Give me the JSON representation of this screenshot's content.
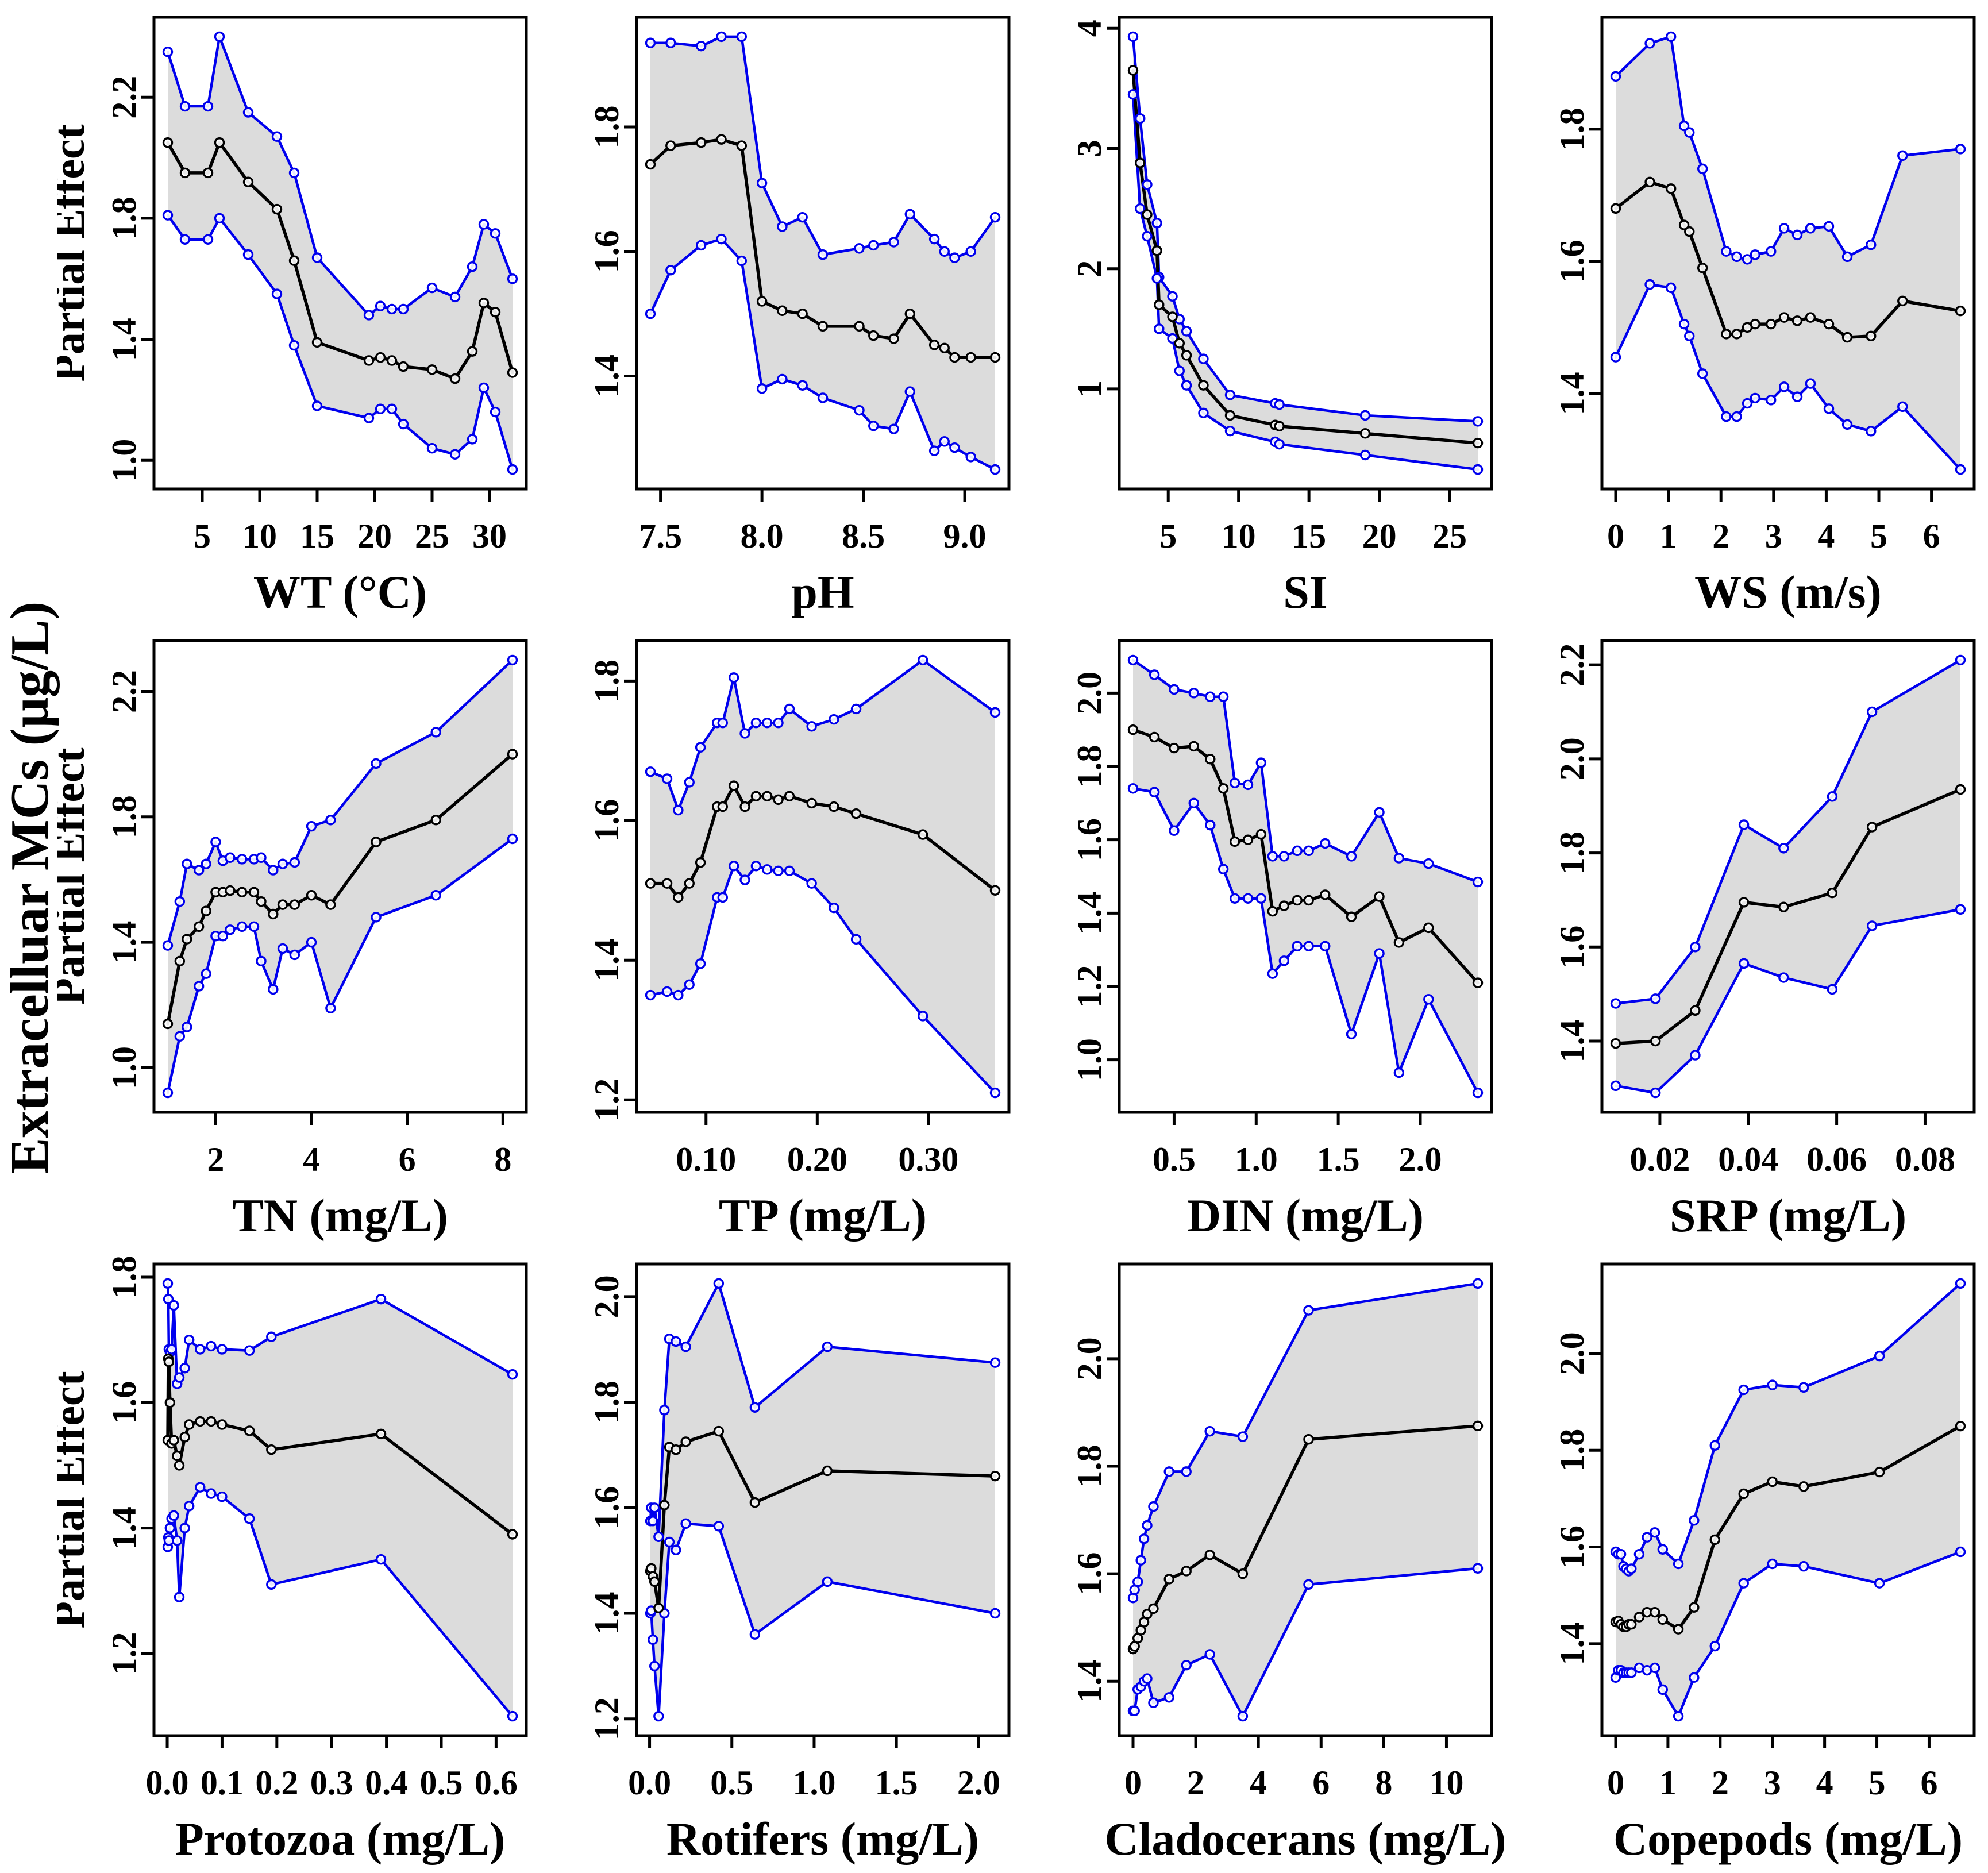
{
  "figure": {
    "outer_ylabel": "Extracelluar MCs (μg/L)",
    "row_ylabel": "Partial Effect",
    "colors": {
      "ci": "#0000EE",
      "line": "#000000",
      "band": "#DCDCDC",
      "background": "#FFFFFF"
    }
  },
  "chart_data": [
    {
      "type": "line-band",
      "xlabel": "WT (°C)",
      "ylabel": "Partial Effect",
      "xticks": [
        [
          5,
          "5"
        ],
        [
          10,
          "10"
        ],
        [
          15,
          "15"
        ],
        [
          20,
          "20"
        ],
        [
          25,
          "25"
        ],
        [
          30,
          "30"
        ]
      ],
      "yticks": [
        [
          1.0,
          "1.0"
        ],
        [
          1.4,
          "1.4"
        ],
        [
          1.8,
          "1.8"
        ],
        [
          2.2,
          "2.2"
        ]
      ],
      "x": [
        2,
        3.5,
        5.5,
        6.5,
        9,
        11.5,
        13,
        15,
        19.5,
        20.5,
        21.5,
        22.5,
        25,
        27,
        28.5,
        29.5,
        30.5,
        32
      ],
      "center": [
        2.05,
        1.95,
        1.95,
        2.05,
        1.92,
        1.83,
        1.66,
        1.39,
        1.33,
        1.34,
        1.33,
        1.31,
        1.3,
        1.27,
        1.36,
        1.52,
        1.49,
        1.29
      ],
      "upper": [
        2.35,
        2.17,
        2.17,
        2.4,
        2.15,
        2.07,
        1.95,
        1.67,
        1.48,
        1.51,
        1.5,
        1.5,
        1.57,
        1.54,
        1.64,
        1.78,
        1.75,
        1.6
      ],
      "lower": [
        1.81,
        1.73,
        1.73,
        1.8,
        1.68,
        1.55,
        1.38,
        1.18,
        1.14,
        1.17,
        1.17,
        1.12,
        1.04,
        1.02,
        1.07,
        1.24,
        1.16,
        0.97
      ]
    },
    {
      "type": "line-band",
      "xlabel": "pH",
      "ylabel": "",
      "xticks": [
        [
          7.5,
          "7.5"
        ],
        [
          8.0,
          "8.0"
        ],
        [
          8.5,
          "8.5"
        ],
        [
          9.0,
          "9.0"
        ]
      ],
      "yticks": [
        [
          1.4,
          "1.4"
        ],
        [
          1.6,
          "1.6"
        ],
        [
          1.8,
          "1.8"
        ]
      ],
      "x": [
        7.45,
        7.55,
        7.7,
        7.8,
        7.9,
        8.0,
        8.1,
        8.2,
        8.3,
        8.48,
        8.55,
        8.65,
        8.73,
        8.85,
        8.9,
        8.95,
        9.03,
        9.15
      ],
      "center": [
        1.74,
        1.77,
        1.775,
        1.78,
        1.77,
        1.52,
        1.505,
        1.5,
        1.48,
        1.48,
        1.465,
        1.46,
        1.5,
        1.45,
        1.445,
        1.43,
        1.43,
        1.43
      ],
      "upper": [
        1.935,
        1.935,
        1.93,
        1.945,
        1.945,
        1.71,
        1.64,
        1.655,
        1.595,
        1.605,
        1.61,
        1.615,
        1.66,
        1.62,
        1.6,
        1.59,
        1.6,
        1.655
      ],
      "lower": [
        1.5,
        1.57,
        1.61,
        1.62,
        1.585,
        1.38,
        1.395,
        1.385,
        1.365,
        1.345,
        1.32,
        1.315,
        1.375,
        1.28,
        1.295,
        1.285,
        1.27,
        1.25
      ]
    },
    {
      "type": "line-band",
      "xlabel": "SI",
      "ylabel": "",
      "xticks": [
        [
          5,
          "5"
        ],
        [
          10,
          "10"
        ],
        [
          15,
          "15"
        ],
        [
          20,
          "20"
        ],
        [
          25,
          "25"
        ]
      ],
      "yticks": [
        [
          1,
          "1"
        ],
        [
          2,
          "2"
        ],
        [
          3,
          "3"
        ],
        [
          4,
          "4"
        ]
      ],
      "x": [
        2.5,
        3.0,
        3.5,
        4.2,
        4.35,
        5.3,
        5.8,
        6.3,
        7.5,
        9.4,
        12.6,
        12.9,
        19,
        27
      ],
      "center": [
        3.65,
        2.88,
        2.45,
        2.15,
        1.7,
        1.6,
        1.38,
        1.28,
        1.03,
        0.78,
        0.7,
        0.69,
        0.63,
        0.55
      ],
      "upper": [
        3.93,
        3.25,
        2.7,
        2.38,
        1.93,
        1.77,
        1.58,
        1.48,
        1.25,
        0.95,
        0.88,
        0.87,
        0.78,
        0.73
      ],
      "lower": [
        3.45,
        2.5,
        2.27,
        1.92,
        1.5,
        1.42,
        1.15,
        1.03,
        0.8,
        0.65,
        0.56,
        0.54,
        0.45,
        0.33
      ]
    },
    {
      "type": "line-band",
      "xlabel": "WS (m/s)",
      "ylabel": "",
      "xticks": [
        [
          0,
          "0"
        ],
        [
          1,
          "1"
        ],
        [
          2,
          "2"
        ],
        [
          3,
          "3"
        ],
        [
          4,
          "4"
        ],
        [
          5,
          "5"
        ],
        [
          6,
          "6"
        ]
      ],
      "yticks": [
        [
          1.4,
          "1.4"
        ],
        [
          1.6,
          "1.6"
        ],
        [
          1.8,
          "1.8"
        ]
      ],
      "x": [
        0,
        0.65,
        1.05,
        1.3,
        1.4,
        1.65,
        2.1,
        2.3,
        2.5,
        2.65,
        2.95,
        3.2,
        3.45,
        3.7,
        4.05,
        4.4,
        4.85,
        5.45,
        6.55
      ],
      "center": [
        1.68,
        1.72,
        1.71,
        1.655,
        1.645,
        1.59,
        1.49,
        1.49,
        1.5,
        1.505,
        1.505,
        1.515,
        1.51,
        1.515,
        1.505,
        1.485,
        1.487,
        1.54,
        1.525
      ],
      "upper": [
        1.88,
        1.93,
        1.94,
        1.805,
        1.795,
        1.74,
        1.615,
        1.607,
        1.603,
        1.61,
        1.615,
        1.65,
        1.64,
        1.65,
        1.653,
        1.607,
        1.625,
        1.76,
        1.77
      ],
      "lower": [
        1.455,
        1.565,
        1.56,
        1.505,
        1.487,
        1.43,
        1.365,
        1.365,
        1.385,
        1.393,
        1.39,
        1.41,
        1.395,
        1.415,
        1.377,
        1.353,
        1.343,
        1.38,
        1.285
      ]
    },
    {
      "type": "line-band",
      "xlabel": "TN (mg/L)",
      "ylabel": "Partial Effect",
      "xticks": [
        [
          2,
          "2"
        ],
        [
          4,
          "4"
        ],
        [
          6,
          "6"
        ],
        [
          8,
          "8"
        ]
      ],
      "yticks": [
        [
          1.0,
          "1.0"
        ],
        [
          1.4,
          "1.4"
        ],
        [
          1.8,
          "1.8"
        ],
        [
          2.2,
          "2.2"
        ]
      ],
      "x": [
        1.0,
        1.25,
        1.4,
        1.65,
        1.8,
        2.0,
        2.15,
        2.3,
        2.55,
        2.8,
        2.95,
        3.2,
        3.4,
        3.65,
        4.0,
        4.4,
        5.35,
        6.6,
        8.2
      ],
      "center": [
        1.14,
        1.34,
        1.41,
        1.45,
        1.5,
        1.56,
        1.56,
        1.565,
        1.56,
        1.56,
        1.53,
        1.49,
        1.52,
        1.52,
        1.55,
        1.52,
        1.72,
        1.79,
        2.0
      ],
      "upper": [
        1.39,
        1.53,
        1.65,
        1.63,
        1.65,
        1.72,
        1.66,
        1.67,
        1.665,
        1.665,
        1.67,
        1.63,
        1.65,
        1.655,
        1.77,
        1.79,
        1.97,
        2.07,
        2.3
      ],
      "lower": [
        0.92,
        1.1,
        1.13,
        1.26,
        1.3,
        1.42,
        1.42,
        1.44,
        1.45,
        1.45,
        1.34,
        1.25,
        1.38,
        1.36,
        1.4,
        1.19,
        1.48,
        1.55,
        1.73
      ]
    },
    {
      "type": "line-band",
      "xlabel": "TP (mg/L)",
      "ylabel": "",
      "xticks": [
        [
          0.1,
          "0.10"
        ],
        [
          0.2,
          "0.20"
        ],
        [
          0.3,
          "0.30"
        ]
      ],
      "yticks": [
        [
          1.2,
          "1.2"
        ],
        [
          1.4,
          "1.4"
        ],
        [
          1.6,
          "1.6"
        ],
        [
          1.8,
          "1.8"
        ]
      ],
      "x": [
        0.05,
        0.065,
        0.075,
        0.085,
        0.095,
        0.11,
        0.115,
        0.125,
        0.135,
        0.145,
        0.155,
        0.165,
        0.175,
        0.195,
        0.215,
        0.235,
        0.295,
        0.36
      ],
      "center": [
        1.51,
        1.51,
        1.49,
        1.51,
        1.54,
        1.62,
        1.62,
        1.65,
        1.62,
        1.635,
        1.635,
        1.63,
        1.635,
        1.625,
        1.62,
        1.61,
        1.58,
        1.5
      ],
      "upper": [
        1.67,
        1.66,
        1.615,
        1.655,
        1.705,
        1.74,
        1.74,
        1.805,
        1.725,
        1.74,
        1.74,
        1.74,
        1.76,
        1.735,
        1.745,
        1.76,
        1.83,
        1.755
      ],
      "lower": [
        1.35,
        1.355,
        1.35,
        1.365,
        1.395,
        1.49,
        1.49,
        1.535,
        1.515,
        1.535,
        1.53,
        1.528,
        1.528,
        1.51,
        1.475,
        1.43,
        1.32,
        1.21
      ]
    },
    {
      "type": "line-band",
      "xlabel": "DIN (mg/L)",
      "ylabel": "",
      "xticks": [
        [
          0.5,
          "0.5"
        ],
        [
          1.0,
          "1.0"
        ],
        [
          1.5,
          "1.5"
        ],
        [
          2.0,
          "2.0"
        ]
      ],
      "yticks": [
        [
          1.0,
          "1.0"
        ],
        [
          1.2,
          "1.2"
        ],
        [
          1.4,
          "1.4"
        ],
        [
          1.6,
          "1.6"
        ],
        [
          1.8,
          "1.8"
        ],
        [
          2.0,
          "2.0"
        ]
      ],
      "x": [
        0.25,
        0.38,
        0.5,
        0.62,
        0.72,
        0.8,
        0.87,
        0.95,
        1.03,
        1.1,
        1.17,
        1.25,
        1.32,
        1.42,
        1.58,
        1.75,
        1.87,
        2.05,
        2.35
      ],
      "center": [
        1.9,
        1.88,
        1.85,
        1.855,
        1.82,
        1.74,
        1.595,
        1.6,
        1.615,
        1.405,
        1.42,
        1.435,
        1.435,
        1.45,
        1.39,
        1.445,
        1.32,
        1.36,
        1.21
      ],
      "upper": [
        2.09,
        2.05,
        2.01,
        2.0,
        1.99,
        1.99,
        1.755,
        1.75,
        1.81,
        1.555,
        1.555,
        1.57,
        1.57,
        1.59,
        1.555,
        1.675,
        1.55,
        1.535,
        1.485
      ],
      "lower": [
        1.74,
        1.73,
        1.625,
        1.7,
        1.64,
        1.52,
        1.44,
        1.44,
        1.44,
        1.235,
        1.27,
        1.31,
        1.31,
        1.31,
        1.07,
        1.29,
        0.965,
        1.165,
        0.91
      ]
    },
    {
      "type": "line-band",
      "xlabel": "SRP (mg/L)",
      "ylabel": "",
      "xticks": [
        [
          0.02,
          "0.02"
        ],
        [
          0.04,
          "0.04"
        ],
        [
          0.06,
          "0.06"
        ],
        [
          0.08,
          "0.08"
        ]
      ],
      "yticks": [
        [
          1.4,
          "1.4"
        ],
        [
          1.6,
          "1.6"
        ],
        [
          1.8,
          "1.8"
        ],
        [
          2.0,
          "2.0"
        ],
        [
          2.2,
          "2.2"
        ]
      ],
      "x": [
        0.01,
        0.019,
        0.028,
        0.039,
        0.048,
        0.059,
        0.068,
        0.088
      ],
      "center": [
        1.395,
        1.4,
        1.465,
        1.695,
        1.685,
        1.715,
        1.855,
        1.935
      ],
      "upper": [
        1.48,
        1.49,
        1.6,
        1.86,
        1.81,
        1.92,
        2.1,
        2.21
      ],
      "lower": [
        1.305,
        1.29,
        1.37,
        1.565,
        1.535,
        1.51,
        1.645,
        1.68
      ]
    },
    {
      "type": "line-band",
      "xlabel": "Protozoa (mg/L)",
      "ylabel": "Partial Effect",
      "xticks": [
        [
          0.0,
          "0.0"
        ],
        [
          0.1,
          "0.1"
        ],
        [
          0.2,
          "0.2"
        ],
        [
          0.3,
          "0.3"
        ],
        [
          0.4,
          "0.4"
        ],
        [
          0.5,
          "0.5"
        ],
        [
          0.6,
          "0.6"
        ]
      ],
      "yticks": [
        [
          1.2,
          "1.2"
        ],
        [
          1.4,
          "1.4"
        ],
        [
          1.6,
          "1.6"
        ],
        [
          1.8,
          "1.8"
        ]
      ],
      "x": [
        0.001,
        0.002,
        0.003,
        0.005,
        0.008,
        0.012,
        0.018,
        0.022,
        0.032,
        0.04,
        0.06,
        0.08,
        0.1,
        0.15,
        0.19,
        0.39,
        0.63
      ],
      "center": [
        1.54,
        1.67,
        1.665,
        1.6,
        1.535,
        1.54,
        1.515,
        1.5,
        1.545,
        1.565,
        1.57,
        1.57,
        1.565,
        1.555,
        1.525,
        1.55,
        1.39
      ],
      "upper": [
        1.79,
        1.765,
        1.685,
        1.68,
        1.685,
        1.755,
        1.63,
        1.64,
        1.655,
        1.7,
        1.685,
        1.69,
        1.685,
        1.683,
        1.705,
        1.765,
        1.645
      ],
      "lower": [
        1.37,
        1.385,
        1.38,
        1.4,
        1.415,
        1.42,
        1.38,
        1.29,
        1.4,
        1.435,
        1.465,
        1.455,
        1.45,
        1.415,
        1.31,
        1.35,
        1.1
      ]
    },
    {
      "type": "line-band",
      "xlabel": "Rotifers (mg/L)",
      "ylabel": "",
      "xticks": [
        [
          0.0,
          "0.0"
        ],
        [
          0.5,
          "0.5"
        ],
        [
          1.0,
          "1.0"
        ],
        [
          1.5,
          "1.5"
        ],
        [
          2.0,
          "2.0"
        ]
      ],
      "yticks": [
        [
          1.2,
          "1.2"
        ],
        [
          1.4,
          "1.4"
        ],
        [
          1.6,
          "1.6"
        ],
        [
          1.8,
          "1.8"
        ],
        [
          2.0,
          "2.0"
        ]
      ],
      "x": [
        0.005,
        0.01,
        0.02,
        0.03,
        0.055,
        0.09,
        0.12,
        0.16,
        0.22,
        0.42,
        0.64,
        1.08,
        2.1
      ],
      "center": [
        1.48,
        1.485,
        1.47,
        1.46,
        1.41,
        1.605,
        1.715,
        1.71,
        1.725,
        1.745,
        1.61,
        1.67,
        1.66
      ],
      "upper": [
        1.575,
        1.6,
        1.575,
        1.6,
        1.545,
        1.785,
        1.92,
        1.915,
        1.905,
        2.025,
        1.79,
        1.905,
        1.875
      ],
      "lower": [
        1.4,
        1.405,
        1.35,
        1.3,
        1.205,
        1.4,
        1.535,
        1.52,
        1.57,
        1.565,
        1.36,
        1.46,
        1.4
      ]
    },
    {
      "type": "line-band",
      "xlabel": "Cladocerans (mg/L)",
      "ylabel": "",
      "xticks": [
        [
          0,
          "0"
        ],
        [
          2,
          "2"
        ],
        [
          4,
          "4"
        ],
        [
          6,
          "6"
        ],
        [
          8,
          "8"
        ],
        [
          10,
          "10"
        ]
      ],
      "yticks": [
        [
          1.4,
          "1.4"
        ],
        [
          1.6,
          "1.6"
        ],
        [
          1.8,
          "1.8"
        ],
        [
          2.0,
          "2.0"
        ]
      ],
      "x": [
        0,
        0.05,
        0.15,
        0.25,
        0.35,
        0.45,
        0.65,
        1.15,
        1.7,
        2.45,
        3.5,
        5.6,
        11
      ],
      "center": [
        1.46,
        1.465,
        1.48,
        1.495,
        1.51,
        1.525,
        1.535,
        1.59,
        1.605,
        1.635,
        1.6,
        1.85,
        1.875
      ],
      "upper": [
        1.555,
        1.57,
        1.585,
        1.625,
        1.665,
        1.69,
        1.725,
        1.79,
        1.79,
        1.865,
        1.855,
        2.09,
        2.14
      ],
      "lower": [
        1.345,
        1.345,
        1.385,
        1.39,
        1.4,
        1.405,
        1.36,
        1.37,
        1.43,
        1.45,
        1.335,
        1.58,
        1.61
      ]
    },
    {
      "type": "line-band",
      "xlabel": "Copepods (mg/L)",
      "ylabel": "",
      "xticks": [
        [
          0,
          "0"
        ],
        [
          1,
          "1"
        ],
        [
          2,
          "2"
        ],
        [
          3,
          "3"
        ],
        [
          4,
          "4"
        ],
        [
          5,
          "5"
        ],
        [
          6,
          "6"
        ]
      ],
      "yticks": [
        [
          1.4,
          "1.4"
        ],
        [
          1.6,
          "1.6"
        ],
        [
          1.8,
          "1.8"
        ],
        [
          2.0,
          "2.0"
        ]
      ],
      "x": [
        0,
        0.05,
        0.1,
        0.15,
        0.2,
        0.25,
        0.3,
        0.45,
        0.6,
        0.75,
        0.9,
        1.2,
        1.5,
        1.9,
        2.45,
        3.0,
        3.6,
        5.05,
        6.6
      ],
      "center": [
        1.445,
        1.447,
        1.44,
        1.435,
        1.435,
        1.44,
        1.44,
        1.455,
        1.465,
        1.465,
        1.45,
        1.43,
        1.475,
        1.615,
        1.71,
        1.735,
        1.725,
        1.755,
        1.85
      ],
      "upper": [
        1.59,
        1.585,
        1.585,
        1.56,
        1.555,
        1.55,
        1.555,
        1.585,
        1.62,
        1.63,
        1.595,
        1.565,
        1.655,
        1.81,
        1.925,
        1.935,
        1.93,
        1.995,
        2.145
      ],
      "lower": [
        1.33,
        1.345,
        1.345,
        1.34,
        1.34,
        1.34,
        1.34,
        1.35,
        1.345,
        1.35,
        1.305,
        1.25,
        1.33,
        1.395,
        1.525,
        1.565,
        1.56,
        1.525,
        1.59
      ]
    }
  ]
}
